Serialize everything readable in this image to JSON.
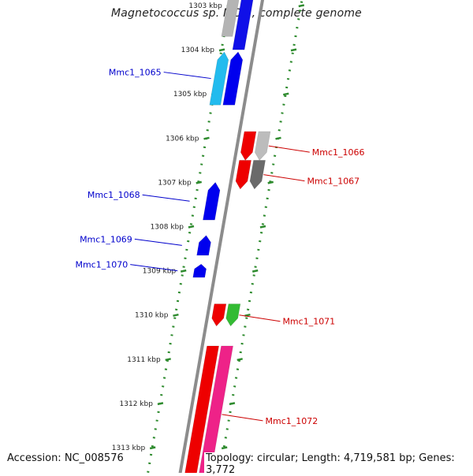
{
  "title": "Magnetococcus sp. MC-1, complete genome",
  "footer": {
    "accession": "Accession: NC_008576",
    "summary": "Topology: circular; Length: 4,719,581 bp; Genes: 3,772"
  },
  "colors": {
    "backbone": "#8c8c8c",
    "tick": "#2e8b2e",
    "dotted_ring": "#2e8b2e",
    "forward_label": "#0000cc",
    "reverse_label": "#cc0000"
  },
  "ticks": [
    {
      "kbp": 1303,
      "label": "1303 kbp"
    },
    {
      "kbp": 1304,
      "label": "1304 kbp"
    },
    {
      "kbp": 1305,
      "label": "1305 kbp"
    },
    {
      "kbp": 1306,
      "label": "1306 kbp"
    },
    {
      "kbp": 1307,
      "label": "1307 kbp"
    },
    {
      "kbp": 1308,
      "label": "1308 kbp"
    },
    {
      "kbp": 1309,
      "label": "1309 kbp"
    },
    {
      "kbp": 1310,
      "label": "1310 kbp"
    },
    {
      "kbp": 1311,
      "label": "1311 kbp"
    },
    {
      "kbp": 1312,
      "label": "1312 kbp"
    },
    {
      "kbp": 1313,
      "label": "1313 kbp"
    }
  ],
  "genes": [
    {
      "name": "",
      "strand": "+",
      "start_kbp": 1302.7,
      "end_kbp": 1304.0,
      "color": "#1010e8",
      "track": 1
    },
    {
      "name": "Mmc1_1065",
      "strand": "+",
      "start_kbp": 1304.05,
      "end_kbp": 1305.25,
      "color": "#0000ee",
      "track": 1
    },
    {
      "name": "Mmc1_1066",
      "strand": "-",
      "start_kbp": 1305.85,
      "end_kbp": 1306.5,
      "color": "#ee0000",
      "track": 1
    },
    {
      "name": "Mmc1_1067",
      "strand": "-",
      "start_kbp": 1306.5,
      "end_kbp": 1307.15,
      "color": "#ee0000",
      "track": 1
    },
    {
      "name": "Mmc1_1068",
      "strand": "+",
      "start_kbp": 1307.0,
      "end_kbp": 1307.85,
      "color": "#0000ee",
      "track": 1
    },
    {
      "name": "Mmc1_1069",
      "strand": "+",
      "start_kbp": 1308.2,
      "end_kbp": 1308.65,
      "color": "#0000ee",
      "track": 1
    },
    {
      "name": "Mmc1_1070",
      "strand": "+",
      "start_kbp": 1308.85,
      "end_kbp": 1309.15,
      "color": "#0000ee",
      "track": 1
    },
    {
      "name": "Mmc1_1071",
      "strand": "-",
      "start_kbp": 1309.75,
      "end_kbp": 1310.25,
      "color": "#ee0000",
      "track": 1
    },
    {
      "name": "Mmc1_1072",
      "strand": "-",
      "start_kbp": 1310.7,
      "end_kbp": 1313.8,
      "color": "#ee0000",
      "track": 1
    }
  ],
  "features": [
    {
      "strand": "+",
      "start_kbp": 1302.7,
      "end_kbp": 1303.7,
      "color": "#b4b4b4",
      "track": 2
    },
    {
      "strand": "+",
      "start_kbp": 1304.05,
      "end_kbp": 1305.25,
      "color": "#22bbee",
      "track": 2
    },
    {
      "strand": "-",
      "start_kbp": 1305.85,
      "end_kbp": 1306.5,
      "color": "#bcbcbc",
      "track": 2
    },
    {
      "strand": "-",
      "start_kbp": 1306.5,
      "end_kbp": 1307.15,
      "color": "#6a6a6a",
      "track": 2
    },
    {
      "strand": "-",
      "start_kbp": 1309.75,
      "end_kbp": 1310.25,
      "color": "#33bb33",
      "track": 2
    },
    {
      "strand": "-",
      "start_kbp": 1310.7,
      "end_kbp": 1313.8,
      "color": "#ee2288",
      "track": 2
    }
  ]
}
